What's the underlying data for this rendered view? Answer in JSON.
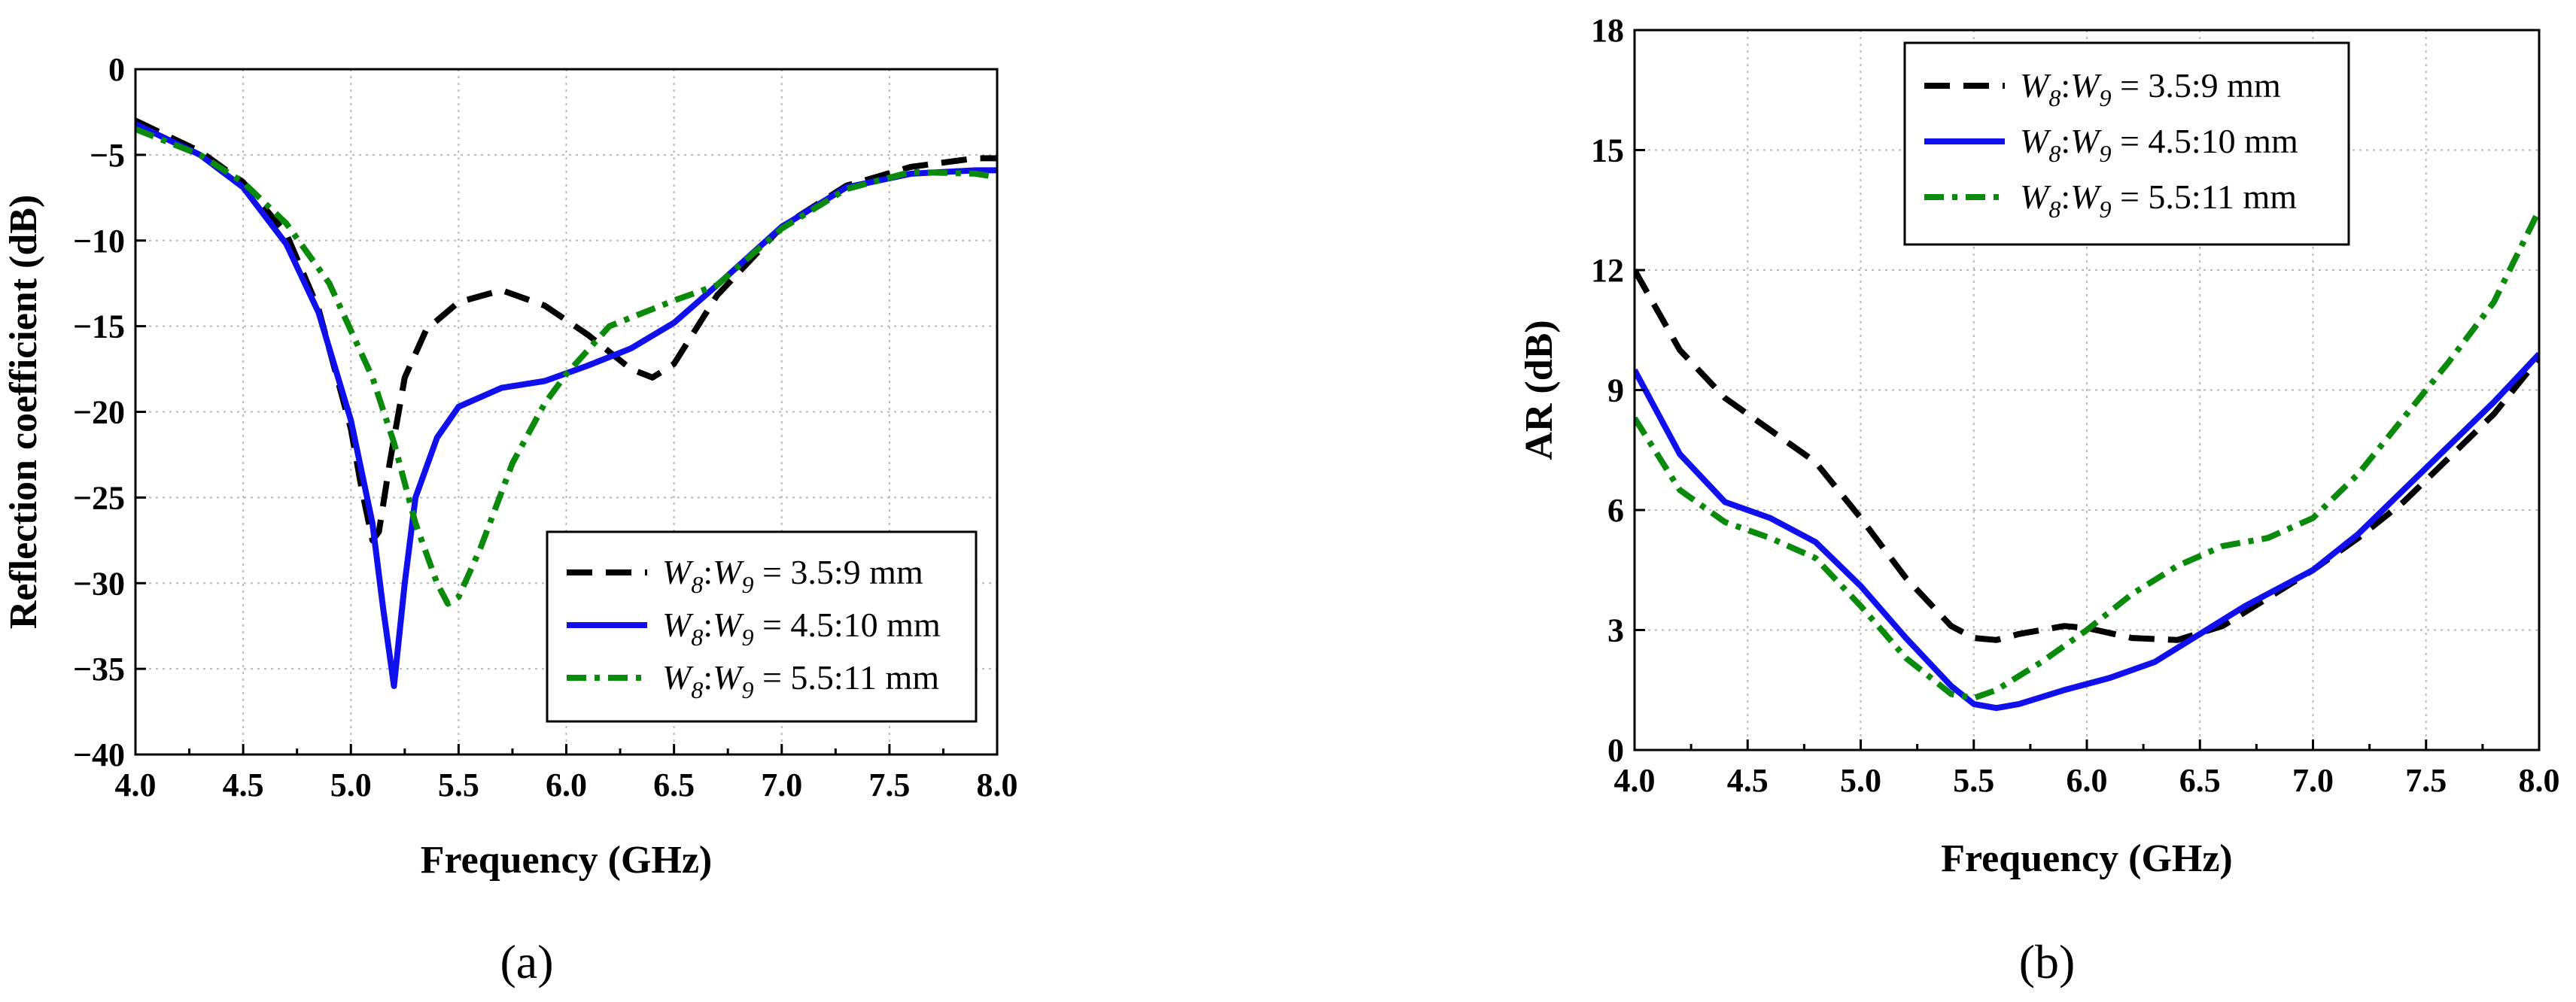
{
  "chart_data": [
    {
      "type": "line",
      "caption": "(a)",
      "xlabel": "Frequency (GHz)",
      "ylabel": "Reflection coefficient (dB)",
      "xlim": [
        4.0,
        8.0
      ],
      "ylim": [
        -40,
        0
      ],
      "xticks": [
        "4.0",
        "4.5",
        "5.0",
        "5.5",
        "6.0",
        "6.5",
        "7.0",
        "7.5",
        "8.0"
      ],
      "yticks": [
        "0",
        "−5",
        "−10",
        "−15",
        "−20",
        "−25",
        "−30",
        "−35",
        "−40"
      ],
      "grid": true,
      "legend_position": "lower-right",
      "series": [
        {
          "name": "W8:W9 = 3.5:9 mm",
          "color": "#000000",
          "style": "dashed",
          "x": [
            4.0,
            4.3,
            4.5,
            4.7,
            4.85,
            5.0,
            5.05,
            5.1,
            5.13,
            5.18,
            5.25,
            5.35,
            5.5,
            5.7,
            5.9,
            6.1,
            6.3,
            6.4,
            6.5,
            6.7,
            7.0,
            7.3,
            7.6,
            7.9,
            8.0
          ],
          "y": [
            -3.0,
            -4.8,
            -6.6,
            -9.6,
            -14.0,
            -21.0,
            -24.5,
            -27.5,
            -27.0,
            -23.0,
            -18.0,
            -15.2,
            -13.6,
            -12.9,
            -13.8,
            -15.5,
            -17.5,
            -18.0,
            -17.2,
            -13.2,
            -9.2,
            -6.8,
            -5.7,
            -5.2,
            -5.2
          ]
        },
        {
          "name": "W8:W9 = 4.5:10 mm",
          "color": "#1010ee",
          "style": "solid",
          "x": [
            4.0,
            4.3,
            4.5,
            4.7,
            4.85,
            5.0,
            5.1,
            5.15,
            5.2,
            5.25,
            5.3,
            5.4,
            5.5,
            5.7,
            5.9,
            6.1,
            6.3,
            6.5,
            6.7,
            7.0,
            7.3,
            7.6,
            7.9,
            8.0
          ],
          "y": [
            -3.2,
            -5.0,
            -6.9,
            -10.2,
            -14.2,
            -20.5,
            -26.5,
            -31.5,
            -36.0,
            -30.0,
            -25.0,
            -21.5,
            -19.7,
            -18.6,
            -18.2,
            -17.3,
            -16.3,
            -14.8,
            -12.6,
            -9.2,
            -6.9,
            -6.1,
            -5.9,
            -5.9
          ]
        },
        {
          "name": "W8:W9 = 5.5:11 mm",
          "color": "#0a8a0a",
          "style": "dash-dot",
          "x": [
            4.0,
            4.3,
            4.5,
            4.7,
            4.9,
            5.1,
            5.2,
            5.3,
            5.4,
            5.45,
            5.5,
            5.6,
            5.75,
            5.9,
            6.0,
            6.2,
            6.5,
            6.7,
            7.0,
            7.3,
            7.6,
            7.9,
            8.0
          ],
          "y": [
            -3.5,
            -5.0,
            -6.6,
            -9.0,
            -12.5,
            -18.0,
            -21.8,
            -26.5,
            -30.0,
            -31.2,
            -30.8,
            -28.0,
            -23.0,
            -19.5,
            -17.8,
            -15.0,
            -13.5,
            -12.6,
            -9.3,
            -7.0,
            -6.0,
            -6.1,
            -6.3
          ]
        }
      ]
    },
    {
      "type": "line",
      "caption": "(b)",
      "xlabel": "Frequency (GHz)",
      "ylabel": "AR (dB)",
      "xlim": [
        4.0,
        8.0
      ],
      "ylim": [
        0,
        18
      ],
      "xticks": [
        "4.0",
        "4.5",
        "5.0",
        "5.5",
        "6.0",
        "6.5",
        "7.0",
        "7.5",
        "8.0"
      ],
      "yticks": [
        "0",
        "3",
        "6",
        "9",
        "12",
        "15",
        "18"
      ],
      "grid": true,
      "legend_position": "top",
      "series": [
        {
          "name": "W8:W9 = 3.5:9 mm",
          "color": "#000000",
          "style": "dashed",
          "x": [
            4.0,
            4.2,
            4.4,
            4.6,
            4.8,
            5.0,
            5.2,
            5.4,
            5.5,
            5.6,
            5.7,
            5.9,
            6.0,
            6.2,
            6.4,
            6.6,
            6.8,
            7.0,
            7.2,
            7.4,
            7.6,
            7.8,
            8.0
          ],
          "y": [
            12.0,
            10.0,
            8.8,
            8.0,
            7.2,
            5.8,
            4.3,
            3.1,
            2.8,
            2.75,
            2.9,
            3.1,
            3.05,
            2.8,
            2.75,
            3.1,
            3.8,
            4.5,
            5.3,
            6.2,
            7.3,
            8.4,
            9.8
          ]
        },
        {
          "name": "W8:W9 = 4.5:10 mm",
          "color": "#1010ee",
          "style": "solid",
          "x": [
            4.0,
            4.2,
            4.4,
            4.6,
            4.8,
            5.0,
            5.2,
            5.4,
            5.5,
            5.6,
            5.7,
            5.9,
            6.1,
            6.3,
            6.5,
            6.7,
            7.0,
            7.2,
            7.4,
            7.6,
            7.8,
            8.0
          ],
          "y": [
            9.5,
            7.4,
            6.2,
            5.8,
            5.2,
            4.1,
            2.8,
            1.6,
            1.15,
            1.05,
            1.15,
            1.5,
            1.8,
            2.2,
            2.9,
            3.6,
            4.5,
            5.4,
            6.5,
            7.6,
            8.7,
            9.9
          ]
        },
        {
          "name": "W8:W9 = 5.5:11 mm",
          "color": "#0a8a0a",
          "style": "dash-dot",
          "x": [
            4.0,
            4.2,
            4.4,
            4.6,
            4.8,
            5.0,
            5.2,
            5.4,
            5.5,
            5.6,
            5.8,
            6.0,
            6.2,
            6.4,
            6.6,
            6.8,
            7.0,
            7.2,
            7.4,
            7.6,
            7.8,
            8.0
          ],
          "y": [
            8.3,
            6.5,
            5.7,
            5.3,
            4.8,
            3.6,
            2.3,
            1.4,
            1.3,
            1.5,
            2.2,
            3.0,
            3.9,
            4.6,
            5.1,
            5.3,
            5.8,
            6.9,
            8.3,
            9.7,
            11.2,
            13.5
          ]
        }
      ]
    }
  ]
}
